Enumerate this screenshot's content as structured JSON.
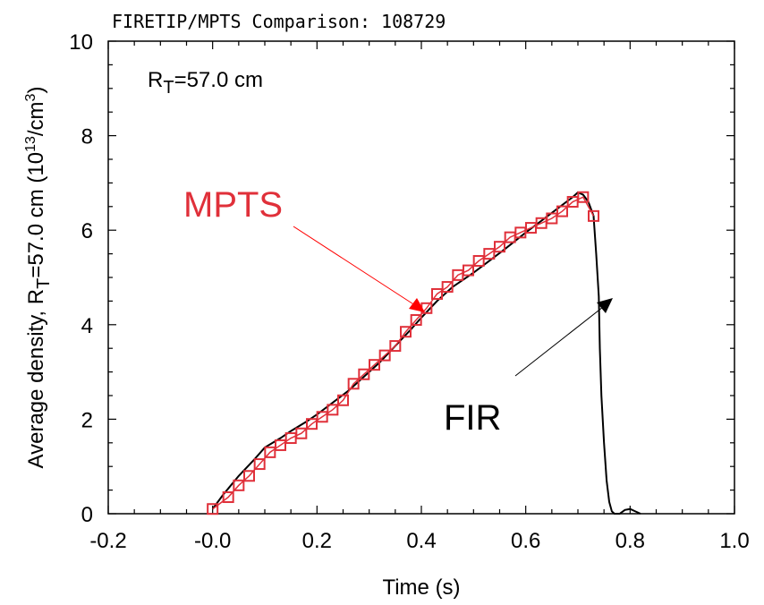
{
  "chart_data": {
    "type": "line",
    "title": "FIRETIP/MPTS Comparison:  108729",
    "xlabel": "Time (s)",
    "ylabel": {
      "prefix": "Average density, R",
      "sub": "T",
      "mid": "=57.0 cm  (10",
      "sup": "13",
      "mid2": "/cm",
      "sup2": "3",
      "suffix": ")"
    },
    "xlim": [
      -0.2,
      1.0
    ],
    "ylim": [
      0,
      10
    ],
    "x_ticks": [
      "-0.2",
      "-0.0",
      "0.2",
      "0.4",
      "0.6",
      "0.8",
      "1.0"
    ],
    "y_ticks": [
      "0",
      "2",
      "4",
      "6",
      "8",
      "10"
    ],
    "annotations": {
      "radius": {
        "base": "R",
        "sub": "T",
        "rest": "=57.0 cm"
      },
      "mpts_label": "MPTS",
      "fir_label": "FIR"
    },
    "colors": {
      "fir": "#000000",
      "mpts": "#e0303a",
      "mpts_arrow": "#ff0000",
      "fir_arrow": "#000000"
    },
    "series": [
      {
        "name": "FIR",
        "x": [
          0.0,
          0.02,
          0.05,
          0.08,
          0.1,
          0.13,
          0.15,
          0.18,
          0.2,
          0.23,
          0.26,
          0.29,
          0.32,
          0.35,
          0.38,
          0.4,
          0.43,
          0.46,
          0.5,
          0.53,
          0.56,
          0.6,
          0.63,
          0.66,
          0.69,
          0.7,
          0.71,
          0.72,
          0.73,
          0.735,
          0.74,
          0.742,
          0.745,
          0.75,
          0.755,
          0.76,
          0.765,
          0.77,
          0.78,
          0.79,
          0.8,
          0.81,
          0.82
        ],
        "y": [
          0.1,
          0.4,
          0.8,
          1.15,
          1.4,
          1.6,
          1.75,
          1.95,
          2.1,
          2.35,
          2.6,
          2.9,
          3.2,
          3.55,
          3.9,
          4.15,
          4.5,
          4.8,
          5.1,
          5.35,
          5.6,
          5.95,
          6.2,
          6.45,
          6.7,
          6.8,
          6.75,
          6.6,
          6.3,
          5.5,
          4.6,
          3.5,
          2.5,
          1.5,
          0.7,
          0.25,
          0.05,
          0.0,
          0.0,
          0.08,
          0.1,
          0.05,
          0.0
        ]
      },
      {
        "name": "MPTS",
        "x": [
          0.0,
          0.03,
          0.05,
          0.07,
          0.09,
          0.11,
          0.13,
          0.15,
          0.17,
          0.19,
          0.21,
          0.23,
          0.25,
          0.27,
          0.29,
          0.31,
          0.33,
          0.35,
          0.37,
          0.39,
          0.41,
          0.43,
          0.45,
          0.47,
          0.49,
          0.51,
          0.53,
          0.55,
          0.57,
          0.59,
          0.61,
          0.63,
          0.65,
          0.67,
          0.69,
          0.71,
          0.73
        ],
        "y": [
          0.1,
          0.35,
          0.6,
          0.8,
          1.05,
          1.3,
          1.45,
          1.6,
          1.7,
          1.9,
          2.05,
          2.2,
          2.4,
          2.75,
          2.95,
          3.15,
          3.35,
          3.55,
          3.85,
          4.1,
          4.35,
          4.65,
          4.8,
          5.05,
          5.15,
          5.35,
          5.5,
          5.65,
          5.85,
          5.95,
          6.05,
          6.15,
          6.25,
          6.4,
          6.6,
          6.7,
          6.3
        ]
      }
    ]
  }
}
